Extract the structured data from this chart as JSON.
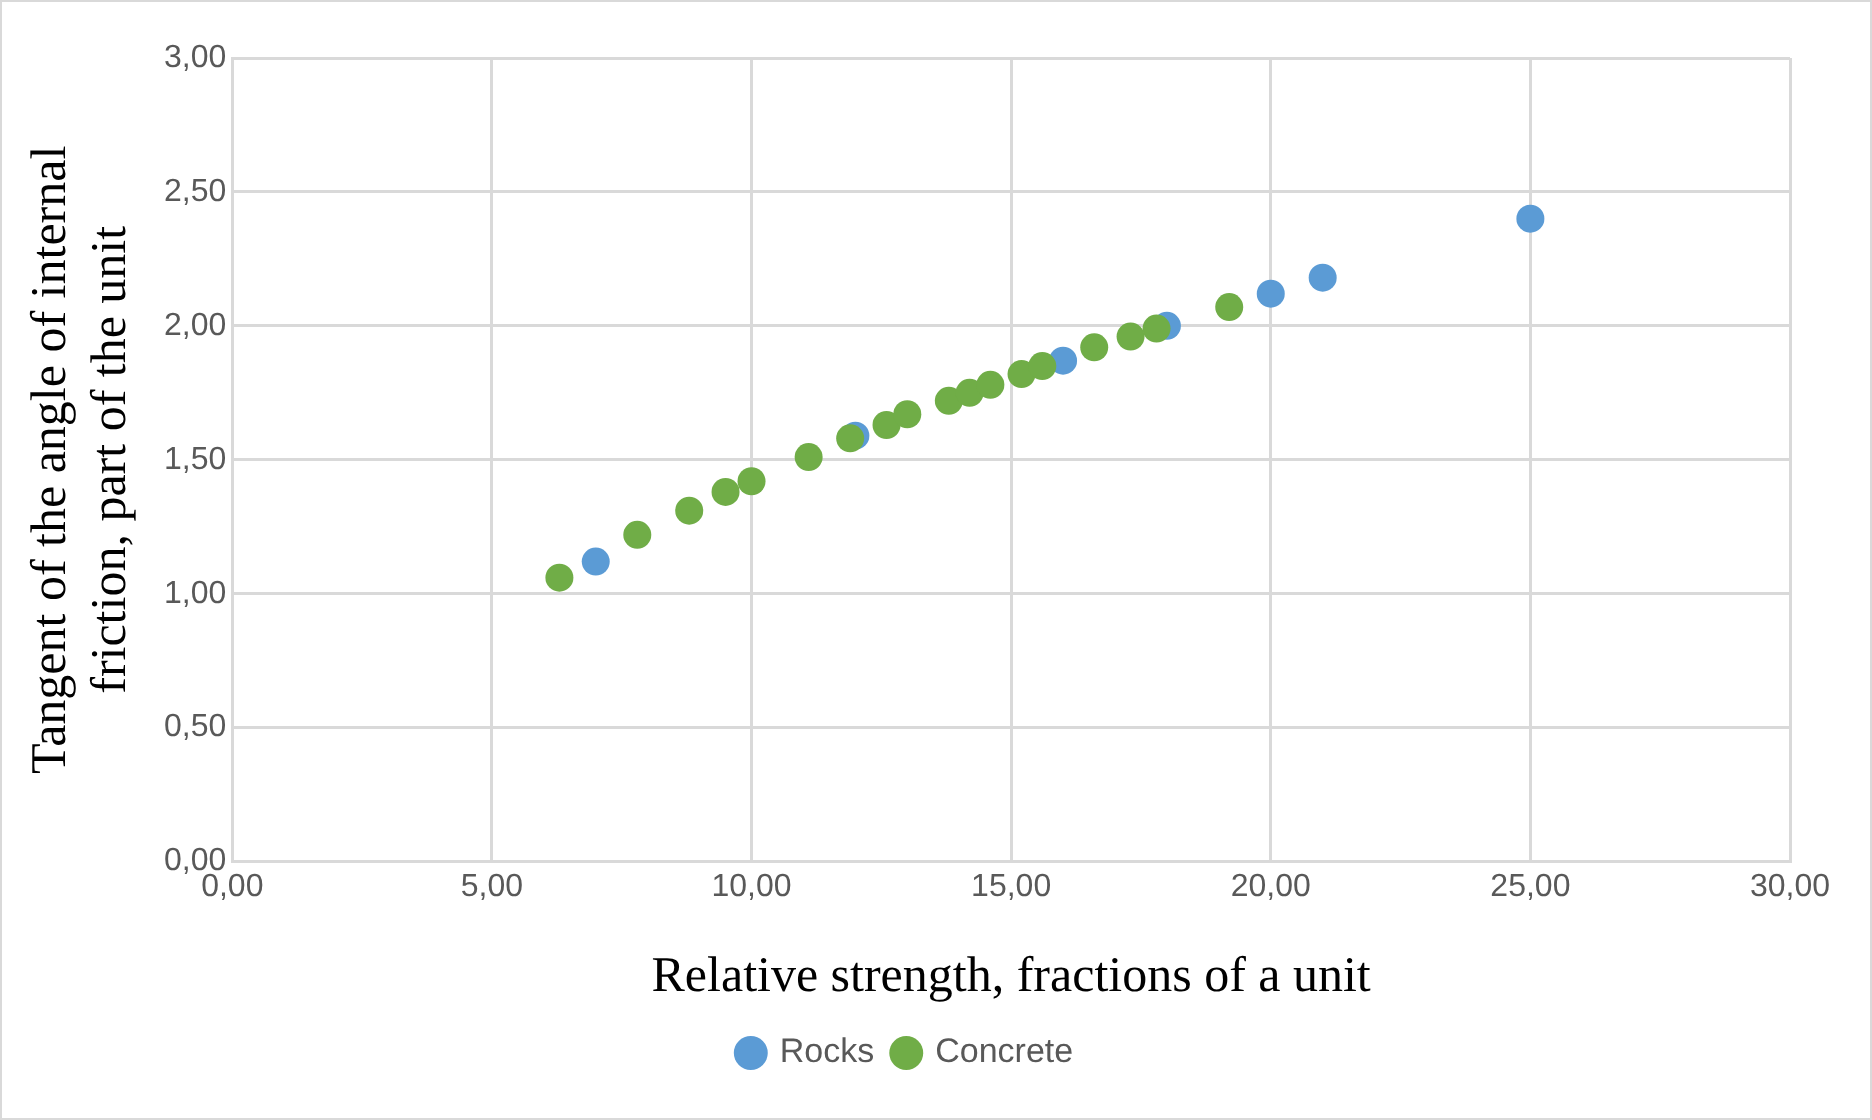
{
  "chart_data": {
    "type": "scatter",
    "xlabel": "Relative strength, fractions of a unit",
    "ylabel": "Tangent of the angle of internal friction, part of the unit",
    "xlim": [
      0,
      30
    ],
    "xticks": [
      {
        "value": 0,
        "label": "0,00"
      },
      {
        "value": 5,
        "label": "5,00"
      },
      {
        "value": 10,
        "label": "10,00"
      },
      {
        "value": 15,
        "label": "15,00"
      },
      {
        "value": 20,
        "label": "20,00"
      },
      {
        "value": 25,
        "label": "25,00"
      },
      {
        "value": 30,
        "label": "30,00"
      }
    ],
    "ylim": [
      0,
      3
    ],
    "yticks": [
      {
        "value": 0,
        "label": "0,00"
      },
      {
        "value": 0.5,
        "label": "0,50"
      },
      {
        "value": 1,
        "label": "1,00"
      },
      {
        "value": 1.5,
        "label": "1,50"
      },
      {
        "value": 2,
        "label": "2,00"
      },
      {
        "value": 2.5,
        "label": "2,50"
      },
      {
        "value": 3,
        "label": "3,00"
      }
    ],
    "grid": true,
    "legend": "bottom",
    "marker": "circle",
    "series": [
      {
        "name": "Rocks",
        "color": "#5b9bd5",
        "x": [
          7,
          12,
          16,
          18,
          20,
          21,
          25
        ],
        "values": [
          1.12,
          1.59,
          1.87,
          2.0,
          2.12,
          2.18,
          2.4
        ]
      },
      {
        "name": "Concrete",
        "color": "#70ad47",
        "x": [
          6.3,
          7.8,
          8.8,
          9.5,
          10.0,
          11.1,
          11.9,
          12.6,
          13.0,
          13.8,
          14.2,
          14.6,
          15.2,
          15.6,
          16.6,
          17.3,
          17.8,
          19.2
        ],
        "values": [
          1.06,
          1.22,
          1.31,
          1.38,
          1.42,
          1.51,
          1.58,
          1.63,
          1.67,
          1.72,
          1.75,
          1.78,
          1.82,
          1.85,
          1.92,
          1.96,
          1.99,
          2.07
        ]
      }
    ]
  }
}
